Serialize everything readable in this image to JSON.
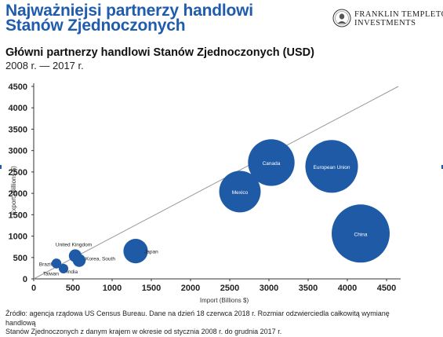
{
  "header": {
    "title_line1": "Najważniejsi partnerzy handlowi",
    "title_line2": "Stanów Zjednoczonych",
    "subtitle": "Główni partnerzy handlowi Stanów Zjednoczonych (USD)",
    "period": "2008 r. — 2017 r."
  },
  "logo": {
    "line1": "FRANKLIN TEMPLETON",
    "line2": "INVESTMENTS",
    "icon": "franklin-seal-icon"
  },
  "chart_data": {
    "type": "scatter",
    "variant": "bubble",
    "title": "",
    "xlabel": "Import (Billions $)",
    "ylabel": "Export (Billions $)",
    "xlim": [
      0,
      4500
    ],
    "ylim": [
      0,
      4500
    ],
    "x_ticks": [
      0,
      500,
      1000,
      1500,
      2000,
      2500,
      3000,
      3500,
      4000,
      4500
    ],
    "y_ticks": [
      0,
      500,
      1000,
      1500,
      2000,
      2500,
      3000,
      3500,
      4000,
      4500
    ],
    "grid": false,
    "bubble_color": "#1f5aa6",
    "reference_line": {
      "x": [
        0,
        4650
      ],
      "y": [
        0,
        4500
      ],
      "color": "#999999"
    },
    "points": [
      {
        "label": "Canada",
        "x": 3030,
        "y": 2720,
        "size": 2900
      },
      {
        "label": "European Union",
        "x": 3800,
        "y": 2630,
        "size": 3700
      },
      {
        "label": "Mexico",
        "x": 2630,
        "y": 2040,
        "size": 2300
      },
      {
        "label": "China",
        "x": 4170,
        "y": 1060,
        "size": 4500
      },
      {
        "label": "Japan",
        "x": 1300,
        "y": 650,
        "size": 800
      },
      {
        "label": "United Kingdom",
        "x": 530,
        "y": 540,
        "size": 220
      },
      {
        "label": "Korea, South",
        "x": 580,
        "y": 430,
        "size": 220
      },
      {
        "label": "Brazil",
        "x": 290,
        "y": 360,
        "size": 130
      },
      {
        "label": "India",
        "x": 380,
        "y": 240,
        "size": 120
      },
      {
        "label": "Taiwan",
        "x": 380,
        "y": 230,
        "size": 0
      }
    ]
  },
  "source": {
    "line1": "Źródło: agencja rządowa US Census Bureau. Dane na dzień 18 czerwca 2018 r. Rozmiar odzwierciedla całkowitą wymianę handlową",
    "line2": "Stanów Zjednoczonych z danym krajem w okresie od stycznia 2008 r. do grudnia 2017 r."
  }
}
